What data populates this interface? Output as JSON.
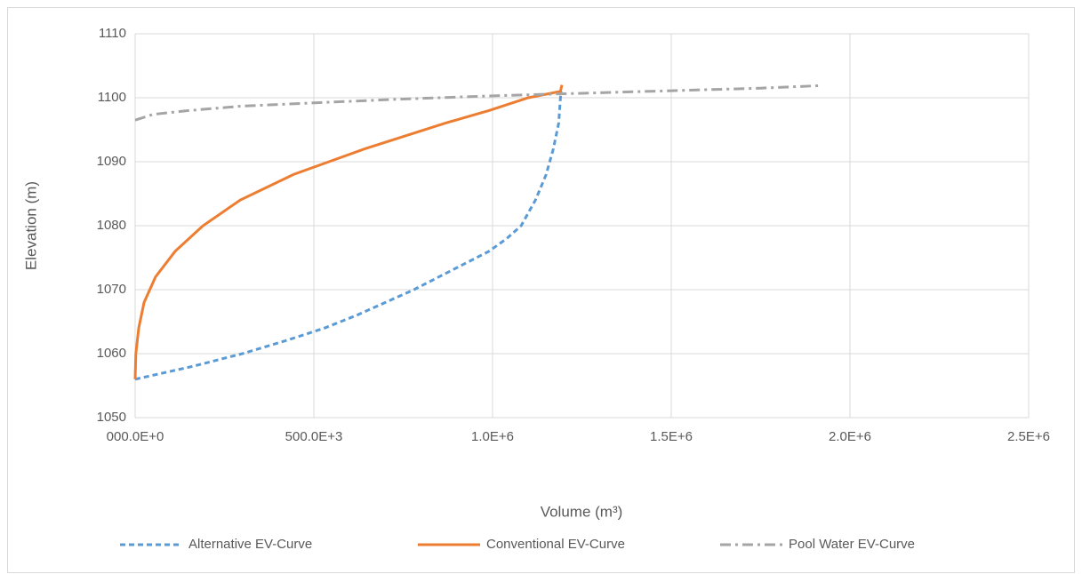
{
  "chart_data": {
    "type": "line",
    "x_label": "Volume (m³)",
    "y_label": "Elevation (m)",
    "xlim": [
      0,
      2500000
    ],
    "ylim": [
      1050,
      1110
    ],
    "xticks": [
      {
        "value": 0,
        "label": "000.0E+0"
      },
      {
        "value": 500000,
        "label": "500.0E+3"
      },
      {
        "value": 1000000,
        "label": "1.0E+6"
      },
      {
        "value": 1500000,
        "label": "1.5E+6"
      },
      {
        "value": 2000000,
        "label": "2.0E+6"
      },
      {
        "value": 2500000,
        "label": "2.5E+6"
      }
    ],
    "yticks": [
      1050,
      1060,
      1070,
      1080,
      1090,
      1100,
      1110
    ],
    "grid": true,
    "legend": "bottom",
    "series": [
      {
        "name": "Alternative EV-Curve",
        "color": "#5b9bd5",
        "dash": "dashed",
        "x": [
          0,
          160000,
          300000,
          420000,
          530000,
          620000,
          700000,
          780000,
          850000,
          920000,
          990000,
          1040000,
          1080000,
          1120000,
          1150000,
          1170000,
          1185000,
          1190000,
          1192000
        ],
        "values": [
          1056,
          1058,
          1060,
          1062,
          1064,
          1066,
          1068,
          1070,
          1072,
          1074,
          1076,
          1078,
          1080,
          1084,
          1088,
          1092,
          1096,
          1100,
          1101
        ]
      },
      {
        "name": "Conventional EV-Curve",
        "color": "#ed7d31",
        "dash": "solid",
        "x": [
          0,
          2000,
          10000,
          25000,
          57000,
          112000,
          190000,
          294000,
          443000,
          642000,
          866000,
          990000,
          1100000,
          1190000,
          1194000
        ],
        "values": [
          1056,
          1060,
          1064,
          1068,
          1072,
          1076,
          1080,
          1084,
          1088,
          1092,
          1096,
          1098,
          1100,
          1101,
          1102
        ]
      },
      {
        "name": "Pool Water EV-Curve",
        "color": "#a5a5a5",
        "dash": "dash-dot",
        "x": [
          0,
          50000,
          150000,
          300000,
          500000,
          750000,
          1000000,
          1250000,
          1500000,
          1750000,
          1920000
        ],
        "values": [
          1096.5,
          1097.4,
          1098,
          1098.7,
          1099.2,
          1099.8,
          1100.3,
          1100.7,
          1101.1,
          1101.5,
          1101.9
        ]
      }
    ]
  }
}
